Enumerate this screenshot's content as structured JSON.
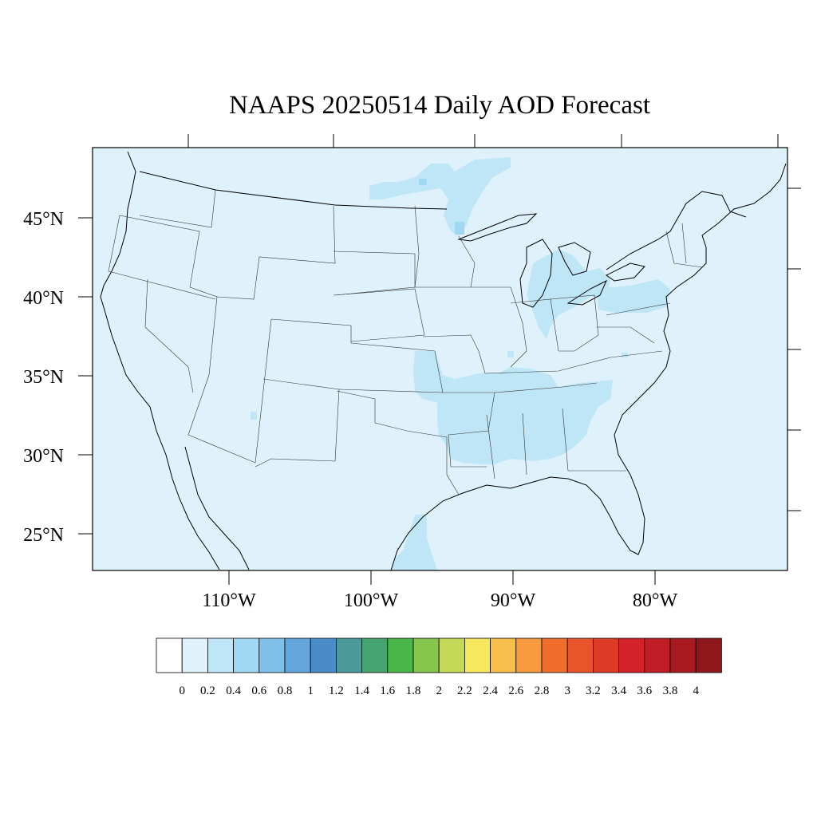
{
  "title": "NAAPS 20250514 Daily AOD Forecast",
  "map": {
    "background_color": "#dff2fb",
    "latitude_labels": [
      "45°N",
      "40°N",
      "35°N",
      "30°N",
      "25°N"
    ],
    "longitude_labels": [
      "110°W",
      "100°W",
      "90°W",
      "80°W"
    ]
  },
  "colorbar": {
    "colors": [
      "#ffffff",
      "#dff2fb",
      "#bfe6f7",
      "#a0d8f3",
      "#80c0e8",
      "#63a6dc",
      "#4a8cca",
      "#4a9a9c",
      "#45a46f",
      "#4ab64a",
      "#86c54b",
      "#c4d957",
      "#f7e75c",
      "#f7bf4a",
      "#f79a3f",
      "#f06d2c",
      "#e8552a",
      "#de3b26",
      "#d32229",
      "#bf1e26",
      "#a81a20",
      "#8f171c"
    ],
    "labels": [
      "0",
      "0.2",
      "0.4",
      "0.6",
      "0.8",
      "1",
      "1.2",
      "1.4",
      "1.6",
      "1.8",
      "2",
      "2.2",
      "2.4",
      "2.6",
      "2.8",
      "3",
      "3.2",
      "3.4",
      "3.6",
      "3.8",
      "4"
    ]
  }
}
